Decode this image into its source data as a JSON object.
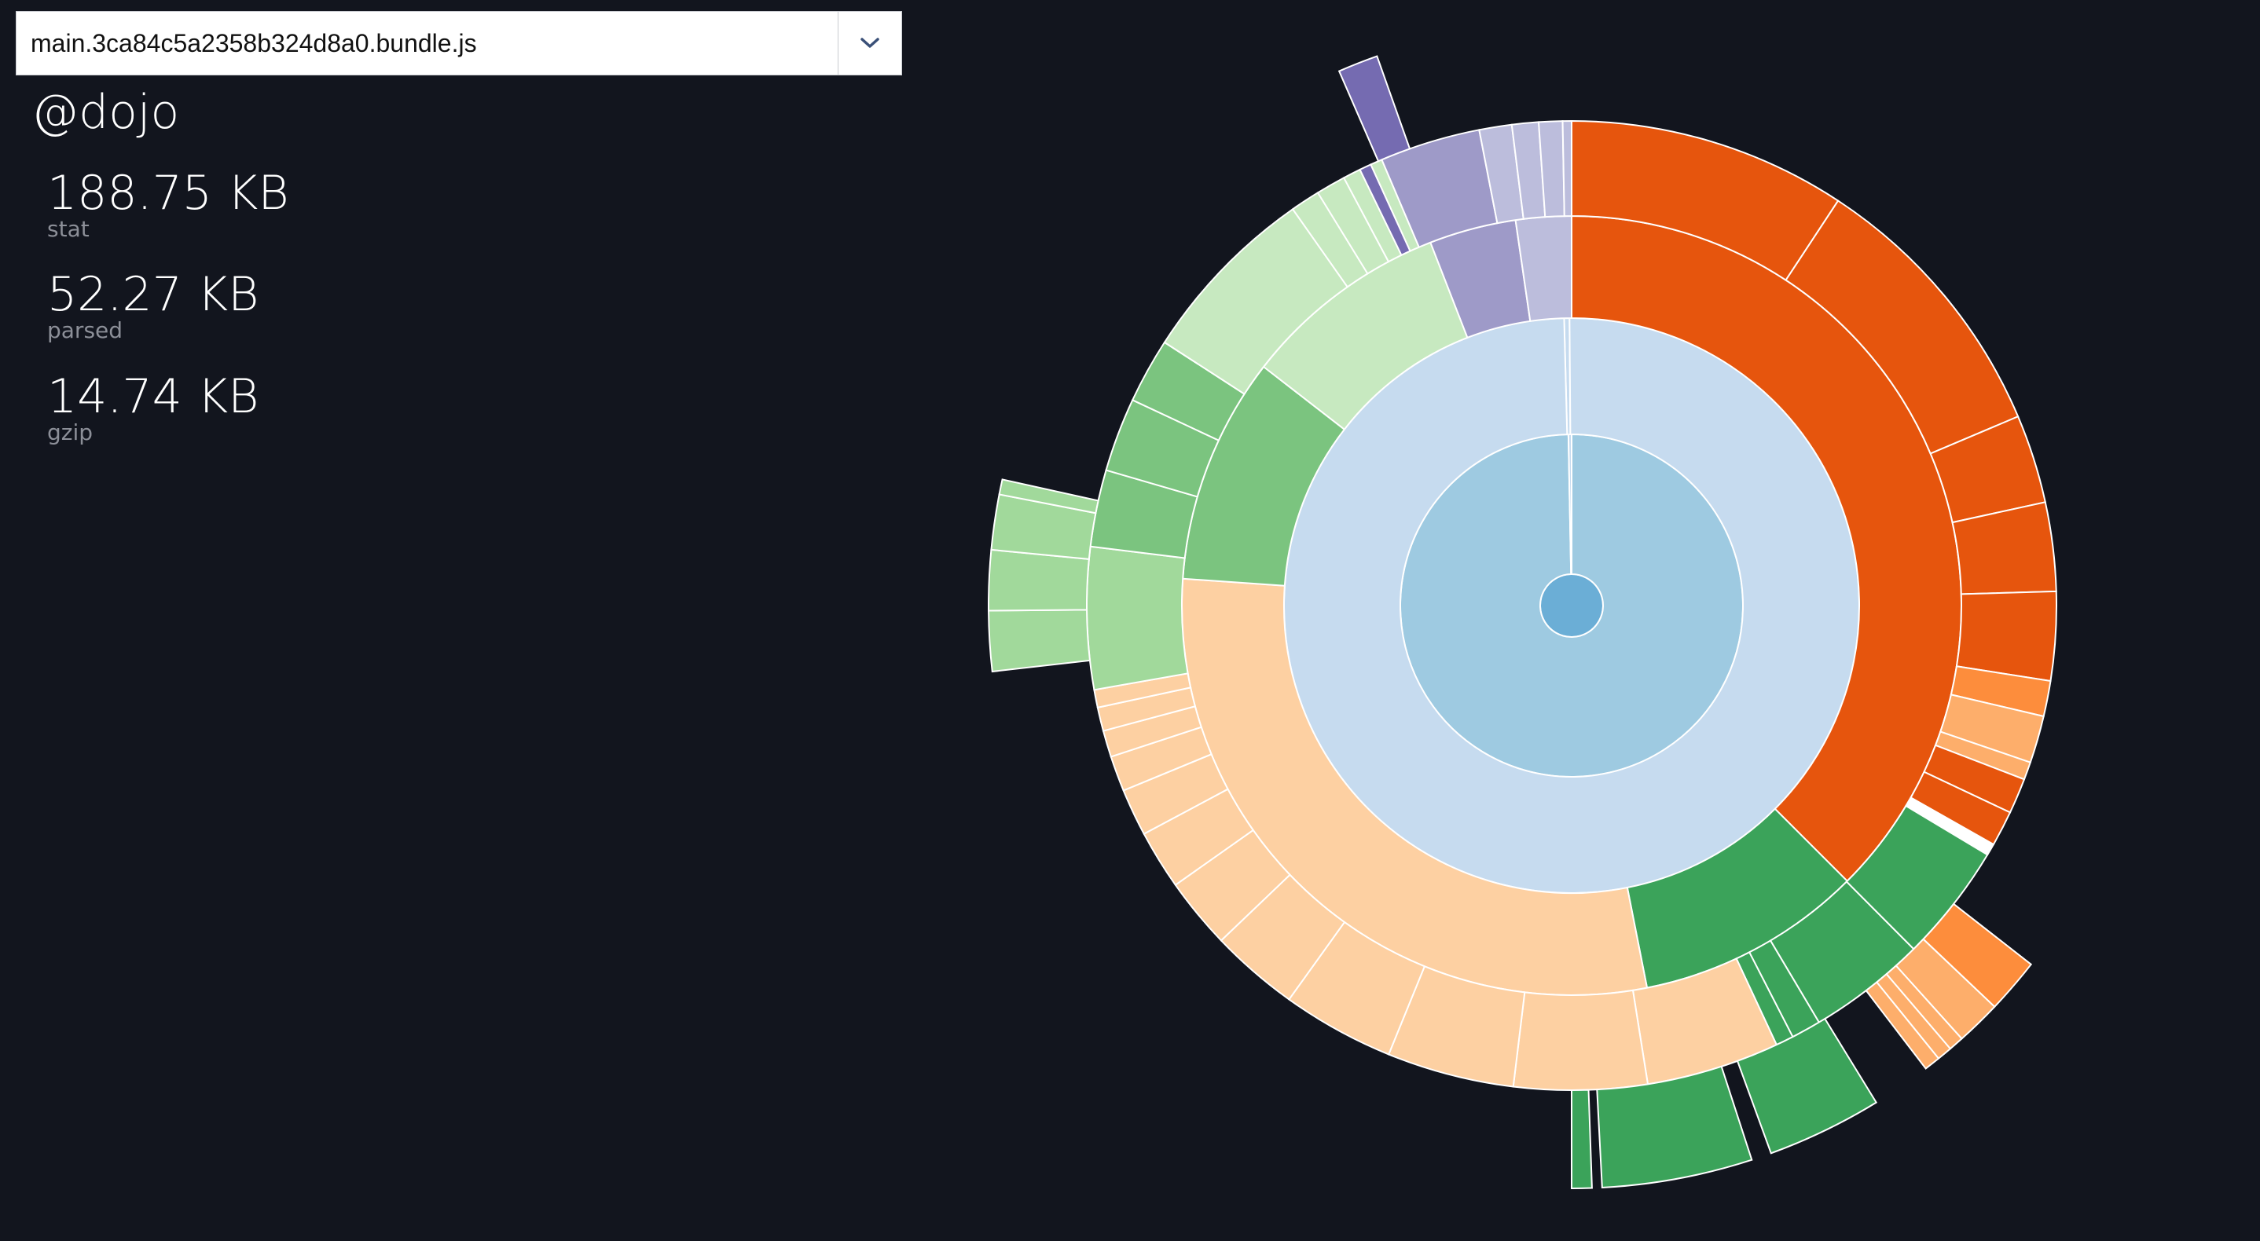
{
  "bundle_select": {
    "value": "main.3ca84c5a2358b324d8a0.bundle.js",
    "icon": "chevron-down-icon"
  },
  "details": {
    "title": "@dojo",
    "stats": [
      {
        "value": "188.75 KB",
        "label": "stat"
      },
      {
        "value": "52.27 KB",
        "label": "parsed"
      },
      {
        "value": "14.74 KB",
        "label": "gzip"
      }
    ]
  },
  "colors": {
    "background": "#12151e",
    "stroke": "#ffffff"
  },
  "chart_data": {
    "type": "sunburst",
    "rings": [
      {
        "level": 0,
        "segments": [
          {
            "share": 1.0,
            "color": "#6baed6"
          }
        ]
      },
      {
        "level": 1,
        "segments": [
          {
            "share": 0.997,
            "color": "#9ecae1"
          },
          {
            "share": 0.003,
            "color": "#c6dbef"
          }
        ]
      },
      {
        "level": 2,
        "segments": [
          {
            "share": 0.003,
            "color": "#c6dbef"
          },
          {
            "share": 0.997,
            "color": "#c6dbef"
          }
        ]
      },
      {
        "level": 3,
        "segments": [
          {
            "share": 0.375,
            "color": "#e6550d"
          },
          {
            "share": 0.094,
            "color": "#3ba35a"
          },
          {
            "share": 0.292,
            "color": "#fdd0a2"
          },
          {
            "share": 0.094,
            "color": "#7bc47f"
          },
          {
            "share": 0.086,
            "color": "#c7e9c0"
          },
          {
            "share": 0.036,
            "color": "#9e9ac8"
          },
          {
            "share": 0.023,
            "color": "#bcbddc"
          }
        ]
      },
      {
        "level": 4,
        "segments": [
          {
            "share": 0.094,
            "color": "#e6550d"
          },
          {
            "share": 0.095,
            "color": "#e6550d"
          },
          {
            "share": 0.03,
            "color": "#e6550d"
          },
          {
            "share": 0.03,
            "color": "#e6550d"
          },
          {
            "share": 0.03,
            "color": "#e6550d"
          },
          {
            "share": 0.012,
            "color": "#fd8d3c"
          },
          {
            "share": 0.016,
            "color": "#fdae6b"
          },
          {
            "share": 0.006,
            "color": "#fdae6b"
          },
          {
            "share": 0.012,
            "color": "#e6550d"
          },
          {
            "share": 0.012,
            "color": "#e6550d"
          },
          {
            "share": 0.004,
            "color": "#ffffff"
          },
          {
            "share": 0.04,
            "color": "#3ba35a"
          },
          {
            "share": 0.04,
            "color": "#3ba35a"
          },
          {
            "share": 0.01,
            "color": "#3ba35a"
          },
          {
            "share": 0.006,
            "color": "#3ba35a"
          },
          {
            "share": 0.045,
            "color": "#fdd0a2"
          },
          {
            "share": 0.045,
            "color": "#fdd0a2"
          },
          {
            "share": 0.043,
            "color": "#fdd0a2"
          },
          {
            "share": 0.038,
            "color": "#fdd0a2"
          },
          {
            "share": 0.03,
            "color": "#fdd0a2"
          },
          {
            "share": 0.024,
            "color": "#fdd0a2"
          },
          {
            "share": 0.02,
            "color": "#fdd0a2"
          },
          {
            "share": 0.016,
            "color": "#fdd0a2"
          },
          {
            "share": 0.012,
            "color": "#fdd0a2"
          },
          {
            "share": 0.009,
            "color": "#fdd0a2"
          },
          {
            "share": 0.008,
            "color": "#fdd0a2"
          },
          {
            "share": 0.006,
            "color": "#fdd0a2"
          },
          {
            "share": 0.048,
            "color": "#a1d99b"
          },
          {
            "share": 0.026,
            "color": "#7bc47f"
          },
          {
            "share": 0.025,
            "color": "#7bc47f"
          },
          {
            "share": 0.022,
            "color": "#7bc47f"
          },
          {
            "share": 0.062,
            "color": "#c7e9c0"
          },
          {
            "share": 0.01,
            "color": "#c7e9c0"
          },
          {
            "share": 0.01,
            "color": "#c7e9c0"
          },
          {
            "share": 0.006,
            "color": "#c7e9c0"
          },
          {
            "share": 0.004,
            "color": "#756bb1"
          },
          {
            "share": 0.004,
            "color": "#c7e9c0"
          },
          {
            "share": 0.034,
            "color": "#9e9ac8"
          },
          {
            "share": 0.011,
            "color": "#bcbddc"
          },
          {
            "share": 0.009,
            "color": "#bcbddc"
          },
          {
            "share": 0.008,
            "color": "#bcbddc"
          },
          {
            "share": 0.003,
            "color": "#bcbddc"
          }
        ]
      },
      {
        "level": 5,
        "segments": [
          {
            "share": 0.012,
            "color": "#fd8d3c"
          },
          {
            "share": 0.01,
            "color": "#fdae6b"
          },
          {
            "share": 0.004,
            "color": "#fdae6b"
          },
          {
            "share": 0.003,
            "color": "#fdae6b"
          },
          {
            "share": 0.003,
            "color": "#fdae6b"
          },
          {
            "share": 0.035,
            "color": "#3ba35a"
          },
          {
            "share": 0.04,
            "color": "#3ba35a"
          },
          {
            "share": 0.006,
            "color": "#3ba35a"
          },
          {
            "share": 0.017,
            "color": "#a1d99b"
          },
          {
            "share": 0.017,
            "color": "#a1d99b"
          },
          {
            "share": 0.015,
            "color": "#a1d99b"
          },
          {
            "share": 0.004,
            "color": "#a1d99b"
          },
          {
            "share": 0.012,
            "color": "#756bb1"
          }
        ]
      }
    ]
  }
}
